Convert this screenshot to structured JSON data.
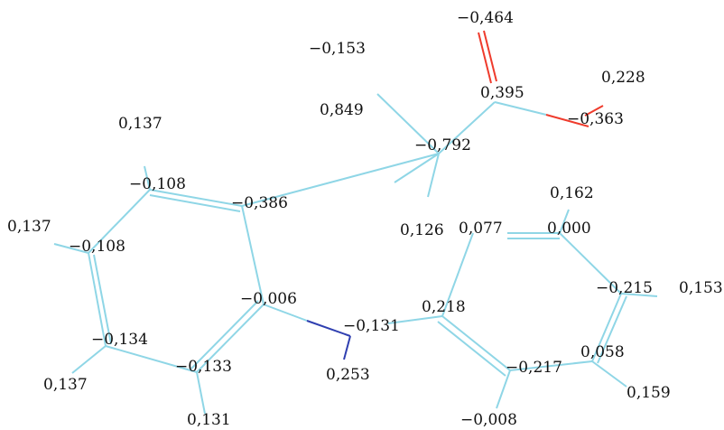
{
  "colors": {
    "carbon_bond": "#8fd6e6",
    "oxygen_bond": "#ef3b2c",
    "nitrogen_bond": "#2f3fb0",
    "text": "#111111",
    "background": "#ffffff"
  },
  "charges": [
    {
      "id": "o-carbonyl",
      "text": "−0,464"
    },
    {
      "id": "c-methyl-h",
      "text": "−0,153"
    },
    {
      "id": "h-oh",
      "text": "0,228"
    },
    {
      "id": "c-carboxyl",
      "text": "0,395"
    },
    {
      "id": "h-ch-top",
      "text": "0,849"
    },
    {
      "id": "o-hydroxyl",
      "text": "−0,363"
    },
    {
      "id": "h-ring1-a",
      "text": "0,137"
    },
    {
      "id": "c-alpha",
      "text": "−0,792"
    },
    {
      "id": "c-ring1-a",
      "text": "−0,108"
    },
    {
      "id": "h-ring2-top",
      "text": "0,162"
    },
    {
      "id": "c-ring1-b",
      "text": "−0,386"
    },
    {
      "id": "h-ring1-b",
      "text": "0,137"
    },
    {
      "id": "c-ring1-c",
      "text": "−0,108"
    },
    {
      "id": "h-alpha",
      "text": "0,126"
    },
    {
      "id": "c-ring2-a",
      "text": "0,077"
    },
    {
      "id": "c-ring2-b",
      "text": "0,000"
    },
    {
      "id": "c-ring2-c",
      "text": "−0,215"
    },
    {
      "id": "h-ring2-c",
      "text": "0,153"
    },
    {
      "id": "c-ring1-d",
      "text": "−0,006"
    },
    {
      "id": "c-ring2-d",
      "text": "0,218"
    },
    {
      "id": "n-amine",
      "text": "−0,131"
    },
    {
      "id": "c-ring1-e",
      "text": "−0,134"
    },
    {
      "id": "c-ring2-e",
      "text": "0,058"
    },
    {
      "id": "c-ring1-f",
      "text": "−0,133"
    },
    {
      "id": "c-ring2-f",
      "text": "−0,217"
    },
    {
      "id": "h-amine",
      "text": "0,253"
    },
    {
      "id": "h-ring1-e",
      "text": "0,137"
    },
    {
      "id": "h-ring2-e",
      "text": "0,159"
    },
    {
      "id": "h-ring1-f",
      "text": "0,131"
    },
    {
      "id": "h-ring2-f",
      "text": "−0,008"
    }
  ]
}
